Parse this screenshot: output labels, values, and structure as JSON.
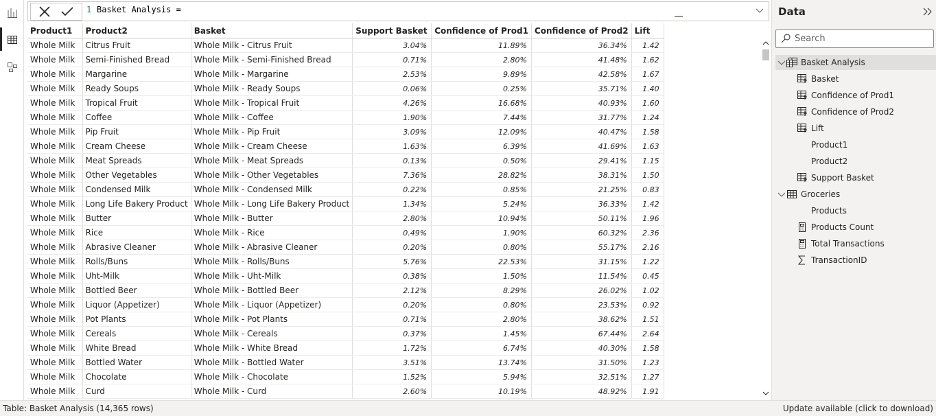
{
  "formula": {
    "line_number": "1",
    "text": "Basket Analysis ="
  },
  "table": {
    "columns": [
      "Product1",
      "Product2",
      "Basket",
      "Support Basket",
      "Confidence of Prod1",
      "Confidence of Prod2",
      "Lift"
    ],
    "rows": [
      [
        "Whole Milk",
        "Citrus Fruit",
        "Whole Milk - Citrus Fruit",
        "3.04%",
        "11.89%",
        "36.34%",
        "1.42"
      ],
      [
        "Whole Milk",
        "Semi-Finished Bread",
        "Whole Milk - Semi-Finished Bread",
        "0.71%",
        "2.80%",
        "41.48%",
        "1.62"
      ],
      [
        "Whole Milk",
        "Margarine",
        "Whole Milk - Margarine",
        "2.53%",
        "9.89%",
        "42.58%",
        "1.67"
      ],
      [
        "Whole Milk",
        "Ready Soups",
        "Whole Milk - Ready Soups",
        "0.06%",
        "0.25%",
        "35.71%",
        "1.40"
      ],
      [
        "Whole Milk",
        "Tropical Fruit",
        "Whole Milk - Tropical Fruit",
        "4.26%",
        "16.68%",
        "40.93%",
        "1.60"
      ],
      [
        "Whole Milk",
        "Coffee",
        "Whole Milk - Coffee",
        "1.90%",
        "7.44%",
        "31.77%",
        "1.24"
      ],
      [
        "Whole Milk",
        "Pip Fruit",
        "Whole Milk - Pip Fruit",
        "3.09%",
        "12.09%",
        "40.47%",
        "1.58"
      ],
      [
        "Whole Milk",
        "Cream Cheese",
        "Whole Milk - Cream Cheese",
        "1.63%",
        "6.39%",
        "41.69%",
        "1.63"
      ],
      [
        "Whole Milk",
        "Meat Spreads",
        "Whole Milk - Meat Spreads",
        "0.13%",
        "0.50%",
        "29.41%",
        "1.15"
      ],
      [
        "Whole Milk",
        "Other Vegetables",
        "Whole Milk - Other Vegetables",
        "7.36%",
        "28.82%",
        "38.31%",
        "1.50"
      ],
      [
        "Whole Milk",
        "Condensed Milk",
        "Whole Milk - Condensed Milk",
        "0.22%",
        "0.85%",
        "21.25%",
        "0.83"
      ],
      [
        "Whole Milk",
        "Long Life Bakery Product",
        "Whole Milk - Long Life Bakery Product",
        "1.34%",
        "5.24%",
        "36.33%",
        "1.42"
      ],
      [
        "Whole Milk",
        "Butter",
        "Whole Milk - Butter",
        "2.80%",
        "10.94%",
        "50.11%",
        "1.96"
      ],
      [
        "Whole Milk",
        "Rice",
        "Whole Milk - Rice",
        "0.49%",
        "1.90%",
        "60.32%",
        "2.36"
      ],
      [
        "Whole Milk",
        "Abrasive Cleaner",
        "Whole Milk - Abrasive Cleaner",
        "0.20%",
        "0.80%",
        "55.17%",
        "2.16"
      ],
      [
        "Whole Milk",
        "Rolls/Buns",
        "Whole Milk - Rolls/Buns",
        "5.76%",
        "22.53%",
        "31.15%",
        "1.22"
      ],
      [
        "Whole Milk",
        "Uht-Milk",
        "Whole Milk - Uht-Milk",
        "0.38%",
        "1.50%",
        "11.54%",
        "0.45"
      ],
      [
        "Whole Milk",
        "Bottled Beer",
        "Whole Milk - Bottled Beer",
        "2.12%",
        "8.29%",
        "26.02%",
        "1.02"
      ],
      [
        "Whole Milk",
        "Liquor (Appetizer)",
        "Whole Milk - Liquor (Appetizer)",
        "0.20%",
        "0.80%",
        "23.53%",
        "0.92"
      ],
      [
        "Whole Milk",
        "Pot Plants",
        "Whole Milk - Pot Plants",
        "0.71%",
        "2.80%",
        "38.62%",
        "1.51"
      ],
      [
        "Whole Milk",
        "Cereals",
        "Whole Milk - Cereals",
        "0.37%",
        "1.45%",
        "67.44%",
        "2.64"
      ],
      [
        "Whole Milk",
        "White Bread",
        "Whole Milk - White Bread",
        "1.72%",
        "6.74%",
        "40.30%",
        "1.58"
      ],
      [
        "Whole Milk",
        "Bottled Water",
        "Whole Milk - Bottled Water",
        "3.51%",
        "13.74%",
        "31.50%",
        "1.23"
      ],
      [
        "Whole Milk",
        "Chocolate",
        "Whole Milk - Chocolate",
        "1.52%",
        "5.94%",
        "32.51%",
        "1.27"
      ],
      [
        "Whole Milk",
        "Curd",
        "Whole Milk - Curd",
        "2.60%",
        "10.19%",
        "48.92%",
        "1.91"
      ]
    ]
  },
  "data_pane": {
    "title": "Data",
    "search_placeholder": "Search",
    "tables": [
      {
        "name": "Basket Analysis",
        "fields": [
          "Basket",
          "Confidence of Prod1",
          "Confidence of Prod2",
          "Lift",
          "Product1",
          "Product2",
          "Support Basket"
        ]
      },
      {
        "name": "Groceries",
        "fields": [
          "Products",
          "Products Count",
          "Total Transactions",
          "TransactionID"
        ]
      }
    ]
  },
  "status_bar": {
    "left": "Table: Basket Analysis (14,365 rows)",
    "right": "Update available (click to download)"
  }
}
